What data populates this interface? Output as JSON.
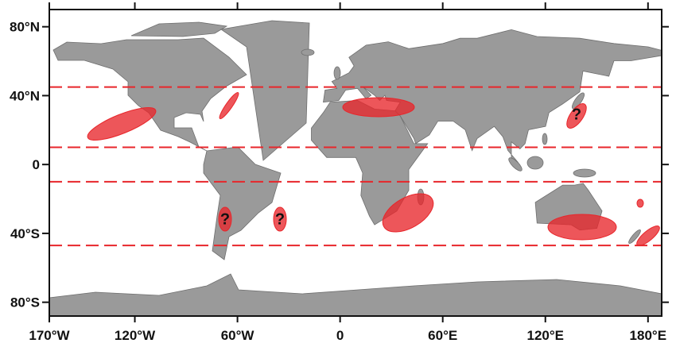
{
  "map": {
    "lonlim": [
      -170,
      188
    ],
    "latlim": [
      -88,
      90
    ],
    "lon_ticks": [
      {
        "value": -170,
        "label": "170°W"
      },
      {
        "value": -120,
        "label": "120°W"
      },
      {
        "value": -60,
        "label": "60°W"
      },
      0,
      {
        "value": 60,
        "label": "60°E"
      },
      {
        "value": 120,
        "label": "120°E"
      },
      {
        "value": 180,
        "label": "180°E"
      }
    ],
    "lat_ticks": [
      {
        "value": 80,
        "label": "80°N"
      },
      {
        "value": 40,
        "label": "40°N"
      },
      0,
      {
        "value": -40,
        "label": "40°S"
      },
      {
        "value": -80,
        "label": "80°S"
      }
    ],
    "dashed_latitudes": [
      45,
      10,
      -10,
      -47
    ],
    "dash_color": "#e8262b",
    "annotations": [
      "?",
      "?",
      "?"
    ]
  }
}
